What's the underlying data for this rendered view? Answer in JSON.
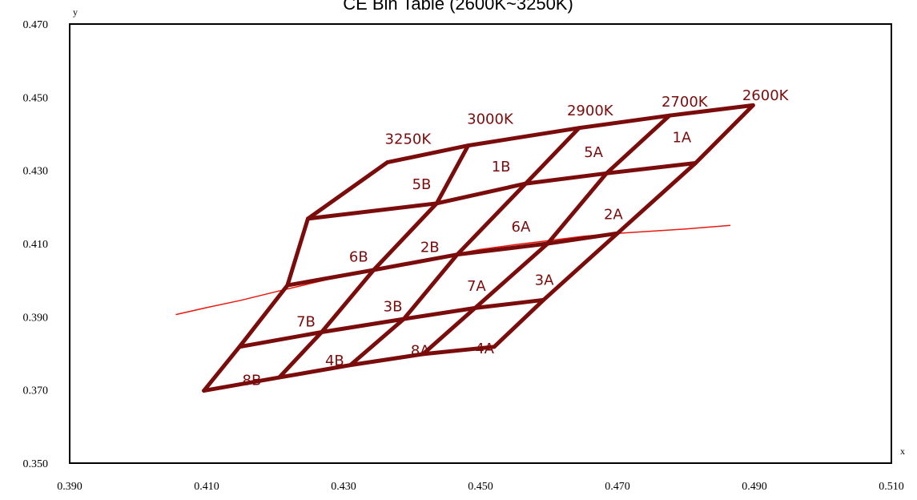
{
  "chart_data": {
    "type": "line",
    "title": "CE Bin Table (2600K~3250K)",
    "xlabel": "x",
    "ylabel": "y",
    "xlim": [
      0.39,
      0.51
    ],
    "ylim": [
      0.35,
      0.47
    ],
    "x_ticks": [
      "0.390",
      "0.410",
      "0.430",
      "0.450",
      "0.470",
      "0.490",
      "0.510"
    ],
    "y_ticks": [
      "0.350",
      "0.370",
      "0.390",
      "0.410",
      "0.430",
      "0.450",
      "0.470"
    ],
    "grid": false,
    "colors": {
      "grid_lines": "#7a0c0c",
      "planckian": "#e8190f",
      "labels": "#7a0c0c"
    },
    "grid_lines": [
      [
        [
          0.4364,
          0.4322
        ],
        [
          0.4482,
          0.4368
        ],
        [
          0.4644,
          0.4416
        ],
        [
          0.4776,
          0.445
        ],
        [
          0.4898,
          0.4478
        ]
      ],
      [
        [
          0.4248,
          0.4168
        ],
        [
          0.4436,
          0.421
        ],
        [
          0.4566,
          0.4264
        ],
        [
          0.4684,
          0.4292
        ],
        [
          0.4814,
          0.432
        ]
      ],
      [
        [
          0.4218,
          0.3986
        ],
        [
          0.4344,
          0.4028
        ],
        [
          0.4466,
          0.407
        ],
        [
          0.4598,
          0.41
        ],
        [
          0.47,
          0.4128
        ]
      ],
      [
        [
          0.4148,
          0.3818
        ],
        [
          0.4268,
          0.3858
        ],
        [
          0.4388,
          0.3894
        ],
        [
          0.4492,
          0.3924
        ],
        [
          0.4592,
          0.3946
        ]
      ],
      [
        [
          0.4096,
          0.3698
        ],
        [
          0.4206,
          0.3734
        ],
        [
          0.431,
          0.3768
        ],
        [
          0.4416,
          0.3798
        ],
        [
          0.452,
          0.3818
        ]
      ],
      [
        [
          0.4364,
          0.4322
        ],
        [
          0.4248,
          0.4168
        ],
        [
          0.4218,
          0.3986
        ],
        [
          0.4148,
          0.3818
        ],
        [
          0.4096,
          0.3698
        ]
      ],
      [
        [
          0.4482,
          0.4368
        ],
        [
          0.4436,
          0.421
        ],
        [
          0.4344,
          0.4028
        ],
        [
          0.4268,
          0.3858
        ],
        [
          0.4206,
          0.3734
        ]
      ],
      [
        [
          0.4644,
          0.4416
        ],
        [
          0.4566,
          0.4264
        ],
        [
          0.4466,
          0.407
        ],
        [
          0.4388,
          0.3894
        ],
        [
          0.431,
          0.3768
        ]
      ],
      [
        [
          0.4776,
          0.445
        ],
        [
          0.4684,
          0.4292
        ],
        [
          0.4598,
          0.41
        ],
        [
          0.4492,
          0.3924
        ],
        [
          0.4416,
          0.3798
        ]
      ],
      [
        [
          0.4898,
          0.4478
        ],
        [
          0.4814,
          0.432
        ],
        [
          0.47,
          0.4128
        ],
        [
          0.4592,
          0.3946
        ],
        [
          0.452,
          0.3818
        ]
      ]
    ],
    "planckian_locus": [
      [
        0.4055,
        0.3906
      ],
      [
        0.41,
        0.3925
      ],
      [
        0.415,
        0.3945
      ],
      [
        0.42,
        0.3968
      ],
      [
        0.425,
        0.399
      ],
      [
        0.43,
        0.4012
      ],
      [
        0.435,
        0.4032
      ],
      [
        0.44,
        0.405
      ],
      [
        0.445,
        0.4067
      ],
      [
        0.45,
        0.4084
      ],
      [
        0.455,
        0.4097
      ],
      [
        0.46,
        0.4108
      ],
      [
        0.465,
        0.412
      ],
      [
        0.47,
        0.4128
      ],
      [
        0.475,
        0.4134
      ],
      [
        0.48,
        0.414
      ],
      [
        0.4865,
        0.415
      ]
    ],
    "bin_labels": [
      {
        "text": "5B",
        "x": 0.4414,
        "y": 0.4262
      },
      {
        "text": "1B",
        "x": 0.453,
        "y": 0.431
      },
      {
        "text": "5A",
        "x": 0.4665,
        "y": 0.435
      },
      {
        "text": "1A",
        "x": 0.4794,
        "y": 0.439
      },
      {
        "text": "6B",
        "x": 0.4322,
        "y": 0.4064
      },
      {
        "text": "2B",
        "x": 0.4426,
        "y": 0.409
      },
      {
        "text": "6A",
        "x": 0.4559,
        "y": 0.4146
      },
      {
        "text": "2A",
        "x": 0.4694,
        "y": 0.418
      },
      {
        "text": "7B",
        "x": 0.4245,
        "y": 0.3887
      },
      {
        "text": "3B",
        "x": 0.4372,
        "y": 0.3928
      },
      {
        "text": "7A",
        "x": 0.4494,
        "y": 0.3984
      },
      {
        "text": "3A",
        "x": 0.4593,
        "y": 0.4
      },
      {
        "text": "8B",
        "x": 0.4166,
        "y": 0.3727
      },
      {
        "text": "4B",
        "x": 0.4287,
        "y": 0.378
      },
      {
        "text": "8A",
        "x": 0.4412,
        "y": 0.3808
      },
      {
        "text": "4A",
        "x": 0.4506,
        "y": 0.3813
      }
    ],
    "temperature_labels": [
      {
        "text": "3250K",
        "x": 0.4394,
        "y": 0.4386
      },
      {
        "text": "3000K",
        "x": 0.4514,
        "y": 0.4441
      },
      {
        "text": "2900K",
        "x": 0.466,
        "y": 0.4463
      },
      {
        "text": "2700K",
        "x": 0.4798,
        "y": 0.4488
      },
      {
        "text": "2600K",
        "x": 0.4916,
        "y": 0.4505
      }
    ]
  }
}
